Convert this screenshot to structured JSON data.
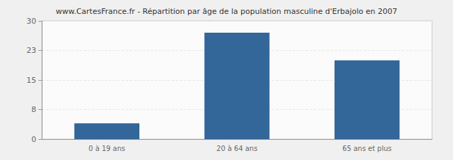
{
  "chart_data": {
    "type": "bar",
    "title": "www.CartesFrance.fr - Répartition par âge de la population masculine d'Erbajolo en 2007",
    "categories": [
      "0 à 19 ans",
      "20 à 64 ans",
      "65 ans et plus"
    ],
    "values": [
      4,
      27,
      20
    ],
    "color": "#336699",
    "ylim": [
      0,
      30
    ],
    "yticks": [
      0,
      {
        "value": 7.5,
        "label": "8"
      },
      15,
      {
        "value": 22.5,
        "label": "23"
      },
      30
    ],
    "grid": true
  }
}
